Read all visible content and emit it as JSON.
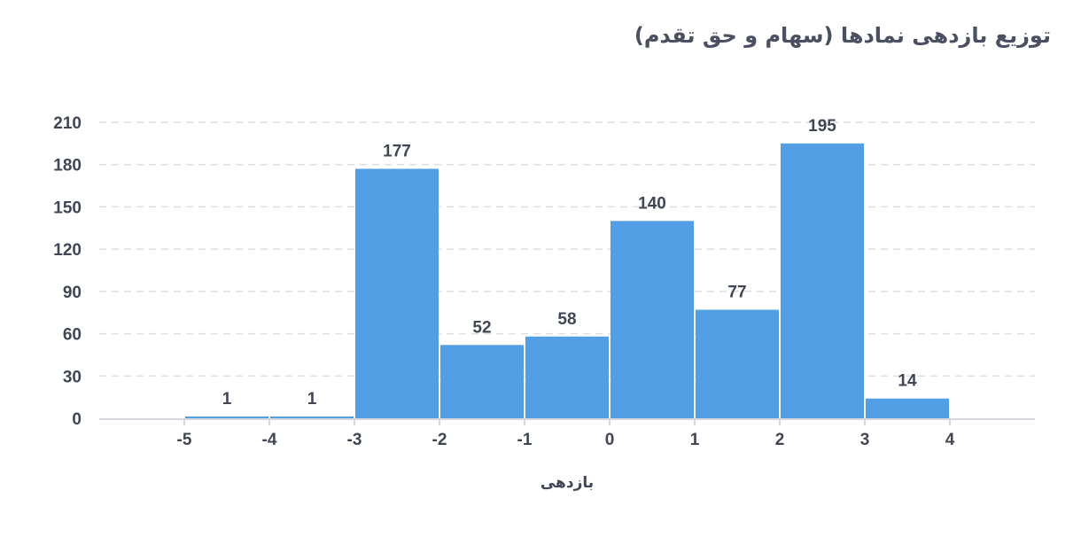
{
  "title": "توزیع بازدهی نمادها (سهام و حق تقدم)",
  "colors": {
    "bar": "#539fe5",
    "grid": "#dfdfdf",
    "axis": "#c8cdd6",
    "text": "#404654"
  },
  "chart_data": {
    "type": "bar",
    "subtype": "histogram",
    "title": "توزیع بازدهی نمادها (سهام و حق تقدم)",
    "xlabel": "بازدهی",
    "ylabel": "",
    "bin_edges": [
      -5,
      -4,
      -3,
      -2,
      -1,
      0,
      1,
      2,
      3,
      4
    ],
    "values": [
      1,
      1,
      177,
      52,
      58,
      140,
      77,
      195,
      14
    ],
    "x_ticks": [
      "-5",
      "-4",
      "-3",
      "-2",
      "-1",
      "0",
      "1",
      "2",
      "3",
      "4"
    ],
    "y_ticks": [
      "0",
      "30",
      "60",
      "90",
      "120",
      "150",
      "180",
      "210"
    ],
    "ylim": [
      0,
      210
    ],
    "xlim": [
      -6,
      5
    ],
    "grid": "horizontal dashed",
    "legend": "none"
  }
}
